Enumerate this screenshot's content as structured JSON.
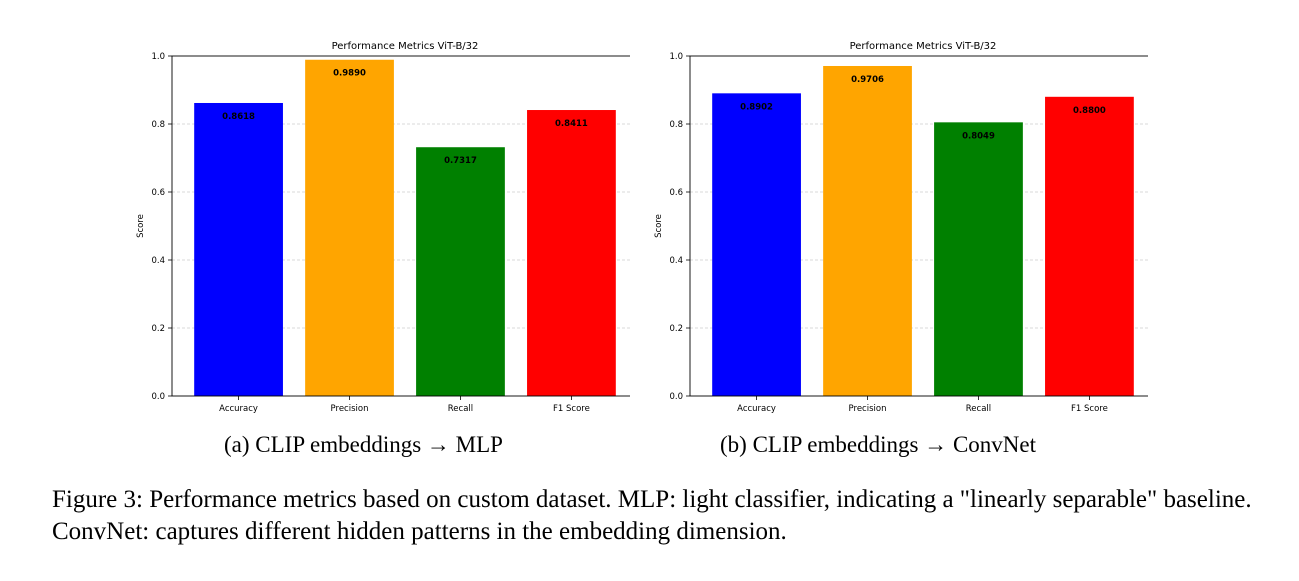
{
  "figure": {
    "caption": "Figure 3: Performance metrics based on custom dataset. MLP: light classifier, indicating a \"linearly separable\" baseline. ConvNet: captures different hidden patterns in the embedding dimension."
  },
  "subcaptions": {
    "a": "(a) CLIP embeddings → MLP",
    "b": "(b) CLIP embeddings → ConvNet"
  },
  "chart_data": [
    {
      "type": "bar",
      "title": "Performance Metrics ViT-B/32",
      "xlabel": "",
      "ylabel": "Score",
      "ylim": [
        0,
        1.0
      ],
      "yticks": [
        "0.0",
        "0.2",
        "0.4",
        "0.6",
        "0.8",
        "1.0"
      ],
      "grid": "horizontal dashed",
      "categories": [
        "Accuracy",
        "Precision",
        "Recall",
        "F1 Score"
      ],
      "values": [
        0.8618,
        0.989,
        0.7317,
        0.8411
      ],
      "value_labels": [
        "0.8618",
        "0.9890",
        "0.7317",
        "0.8411"
      ],
      "colors": [
        "#0000ff",
        "#ffa500",
        "#008000",
        "#ff0000"
      ]
    },
    {
      "type": "bar",
      "title": "Performance Metrics ViT-B/32",
      "xlabel": "",
      "ylabel": "Score",
      "ylim": [
        0,
        1.0
      ],
      "yticks": [
        "0.0",
        "0.2",
        "0.4",
        "0.6",
        "0.8",
        "1.0"
      ],
      "grid": "horizontal dashed",
      "categories": [
        "Accuracy",
        "Precision",
        "Recall",
        "F1 Score"
      ],
      "values": [
        0.8902,
        0.9706,
        0.8049,
        0.88
      ],
      "value_labels": [
        "0.8902",
        "0.9706",
        "0.8049",
        "0.8800"
      ],
      "colors": [
        "#0000ff",
        "#ffa500",
        "#008000",
        "#ff0000"
      ]
    }
  ]
}
